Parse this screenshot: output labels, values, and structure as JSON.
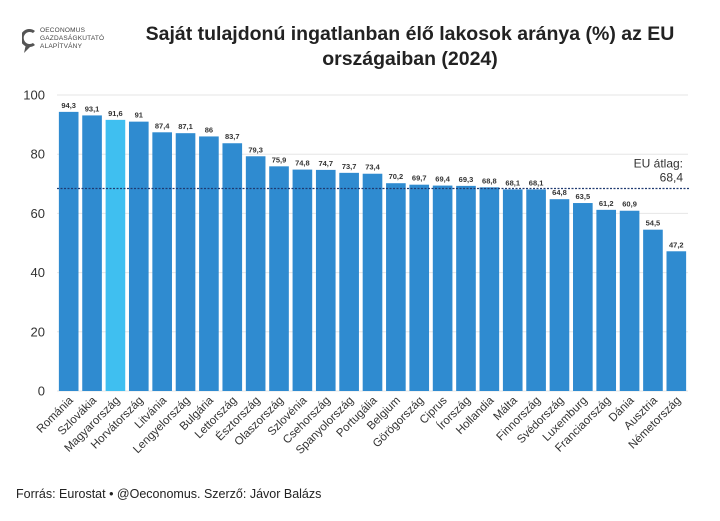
{
  "logo": {
    "line1": "OECONOMUS",
    "line2": "GAZDASÁGKUTATÓ",
    "line3": "ALAPÍTVÁNY"
  },
  "title": "Saját tulajdonú ingatlanban élő lakosok aránya (%) az EU országaiban (2024)",
  "source": "Forrás: Eurostat • @Oeconomus. Szerző: Jávor Balázs",
  "colors": {
    "bar": "#2f8bd0",
    "highlight": "#3fbff0",
    "avg_line": "#1f3a70",
    "grid": "#e6e6e6"
  },
  "chart_data": {
    "type": "bar",
    "title": "Saját tulajdonú ingatlanban élő lakosok aránya (%) az EU országaiban (2024)",
    "xlabel": "",
    "ylabel": "",
    "ylim": [
      0,
      100
    ],
    "yticks": [
      0,
      20,
      40,
      60,
      80,
      100
    ],
    "grid": true,
    "categories": [
      "Románia",
      "Szlovákia",
      "Magyarország",
      "Horvátország",
      "Litvánia",
      "Lengyelország",
      "Bulgária",
      "Lettország",
      "Észtország",
      "Olaszország",
      "Szlovénia",
      "Csehország",
      "Spanyolország",
      "Portugália",
      "Belgium",
      "Görögország",
      "Ciprus",
      "Írország",
      "Hollandia",
      "Málta",
      "Finnország",
      "Svédország",
      "Luxemburg",
      "Franciaország",
      "Dánia",
      "Ausztria",
      "Németország"
    ],
    "values": [
      94.3,
      93.1,
      91.6,
      91,
      87.4,
      87.1,
      86,
      83.7,
      79.3,
      75.9,
      74.8,
      74.7,
      73.7,
      73.4,
      70.2,
      69.7,
      69.4,
      69.3,
      68.8,
      68.1,
      68.1,
      64.8,
      63.5,
      61.2,
      60.9,
      54.5,
      47.2
    ],
    "value_labels": [
      "94,3",
      "93,1",
      "91,6",
      "91",
      "87,4",
      "87,1",
      "86",
      "83,7",
      "79,3",
      "75,9",
      "74,8",
      "74,7",
      "73,7",
      "73,4",
      "70,2",
      "69,7",
      "69,4",
      "69,3",
      "68,8",
      "68,1",
      "68,1",
      "64,8",
      "63,5",
      "61,2",
      "60,9",
      "54,5",
      "47,2"
    ],
    "highlight": "Magyarország",
    "reference_line": {
      "label": "EU átlag:",
      "value": 68.4,
      "value_label": "68,4"
    }
  }
}
